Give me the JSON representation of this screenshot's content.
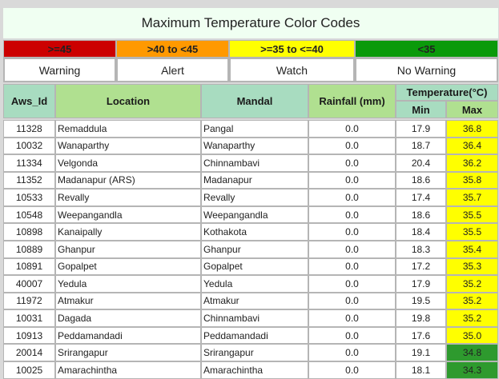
{
  "header": {
    "title": "Maximum Temperature Color Codes"
  },
  "legend": [
    {
      "range": ">=45",
      "meaning": "Warning",
      "color": "#cc0000"
    },
    {
      "range": ">40 to <45",
      "meaning": "Alert",
      "color": "#ff9900"
    },
    {
      "range": ">=35 to <=40",
      "meaning": "Watch",
      "color": "#ffff00"
    },
    {
      "range": "<35",
      "meaning": "No Warning",
      "color": "#0a9a0a"
    }
  ],
  "table": {
    "headers": [
      "Aws_Id",
      "Location",
      "Mandal",
      "Rainfall (mm)"
    ],
    "temperature_header": "Temperature(°C)",
    "subheaders": [
      "Min",
      "Max"
    ],
    "rows": [
      [
        "11328",
        "Remaddula",
        "Pangal",
        "0.0",
        "17.9",
        "36.8"
      ],
      [
        "10032",
        "Wanaparthy",
        "Wanaparthy",
        "0.0",
        "18.7",
        "36.4"
      ],
      [
        "11334",
        "Velgonda",
        "Chinnambavi",
        "0.0",
        "20.4",
        "36.2"
      ],
      [
        "11352",
        "Madanapur (ARS)",
        "Madanapur",
        "0.0",
        "18.6",
        "35.8"
      ],
      [
        "10533",
        "Revally",
        "Revally",
        "0.0",
        "17.4",
        "35.7"
      ],
      [
        "10548",
        "Weepangandla",
        "Weepangandla",
        "0.0",
        "18.6",
        "35.5"
      ],
      [
        "10898",
        "Kanaipally",
        "Kothakota",
        "0.0",
        "18.4",
        "35.5"
      ],
      [
        "10889",
        "Ghanpur",
        "Ghanpur",
        "0.0",
        "18.3",
        "35.4"
      ],
      [
        "10891",
        "Gopalpet",
        "Gopalpet",
        "0.0",
        "17.2",
        "35.3"
      ],
      [
        "40007",
        "Yedula",
        "Yedula",
        "0.0",
        "17.9",
        "35.2"
      ],
      [
        "11972",
        "Atmakur",
        "Atmakur",
        "0.0",
        "19.5",
        "35.2"
      ],
      [
        "10031",
        "Dagada",
        "Chinnambavi",
        "0.0",
        "19.8",
        "35.2"
      ],
      [
        "10913",
        "Peddamandadi",
        "Peddamandadi",
        "0.0",
        "17.6",
        "35.0"
      ],
      [
        "20014",
        "Srirangapur",
        "Srirangapur",
        "0.0",
        "19.1",
        "34.8"
      ],
      [
        "10025",
        "Amarachintha",
        "Amarachintha",
        "0.0",
        "18.1",
        "34.3"
      ]
    ],
    "max_colors": [
      "#ffff00",
      "#ffff00",
      "#ffff00",
      "#ffff00",
      "#ffff00",
      "#ffff00",
      "#ffff00",
      "#ffff00",
      "#ffff00",
      "#ffff00",
      "#ffff00",
      "#ffff00",
      "#ffff00",
      "#2e9a2e",
      "#2e9a2e"
    ]
  }
}
